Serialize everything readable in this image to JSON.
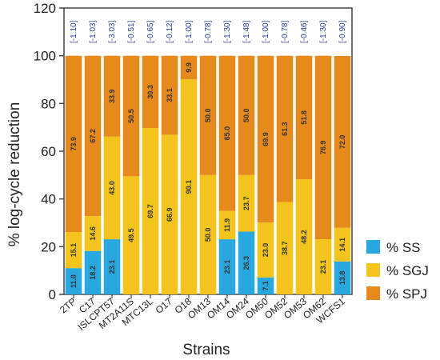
{
  "chart_data": {
    "type": "bar",
    "stacked": true,
    "xlabel": "Strains",
    "ylabel": "% log-cycle reduction",
    "ylim": [
      0,
      120
    ],
    "yticks": [
      0,
      20,
      40,
      60,
      80,
      100,
      120
    ],
    "grid": false,
    "legend_position": "bottom-right",
    "categories": [
      "2TP",
      "C17",
      "ISLCPT57",
      "MT2A11S",
      "MTC13L",
      "O17",
      "O18",
      "OM13",
      "OM14",
      "OM24",
      "OM50",
      "OM52",
      "OM53",
      "OM62",
      "WCFS1"
    ],
    "top_labels": [
      "[-1.10]",
      "[-1.03]",
      "[-3.03]",
      "[-0.51]",
      "[-0.65]",
      "[-0.12]",
      "[-1.00]",
      "[-0.78]",
      "[-1.30]",
      "[-1.48]",
      "[-1.00]",
      "[-0.78]",
      "[-0.46]",
      "[-1.30]",
      "[-0.90]"
    ],
    "series": [
      {
        "name": "% SS",
        "color": "#29a8e0",
        "values": [
          11.0,
          18.2,
          23.1,
          0,
          0,
          0,
          0,
          0,
          23.1,
          26.3,
          7.1,
          0,
          0,
          0,
          13.8
        ]
      },
      {
        "name": "% SGJ",
        "color": "#f2c41c",
        "values": [
          15.1,
          14.6,
          43.0,
          49.5,
          69.7,
          66.9,
          90.1,
          50.0,
          11.9,
          23.7,
          23.0,
          38.7,
          48.2,
          23.1,
          14.1
        ]
      },
      {
        "name": "% SPJ",
        "color": "#e8891c",
        "values": [
          73.9,
          67.2,
          33.9,
          50.5,
          30.3,
          33.1,
          9.9,
          50.0,
          65.0,
          50.0,
          69.9,
          61.3,
          51.8,
          76.9,
          72.0
        ]
      }
    ],
    "data_labels": [
      [
        "11.0",
        "18.2",
        "23.1",
        "",
        "",
        "",
        "",
        "",
        "23.1",
        "26.3",
        "7.1",
        "",
        "",
        "",
        "13.8"
      ],
      [
        "15.1",
        "14.6",
        "43.0",
        "49.5",
        "69.7",
        "66.9",
        "90.1",
        "50.0",
        "11.9",
        "23.7",
        "23.0",
        "38.7",
        "48.2",
        "23.1",
        "14.1"
      ],
      [
        "73.9",
        "67.2",
        "33.9",
        "50.5",
        "30.3",
        "33.1",
        "9.9",
        "50.0",
        "65.0",
        "50.0",
        "69.9",
        "61.3",
        "51.8",
        "76.9",
        "72.0"
      ]
    ]
  }
}
